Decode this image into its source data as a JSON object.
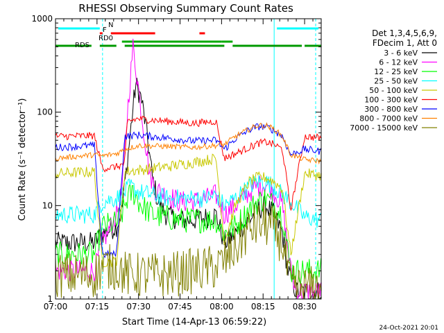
{
  "chart_data": {
    "type": "line",
    "title": "RHESSI Observing Summary Count Rates",
    "xlabel": "Start Time (14-Apr-13 06:59:22)",
    "ylabel": "Count Rate (s⁻¹ detector⁻¹)",
    "y_scale": "log",
    "ylim": [
      1,
      1000
    ],
    "xlim": [
      "07:00",
      "08:36"
    ],
    "x_ticks": [
      "07:00",
      "07:15",
      "07:30",
      "07:45",
      "08:00",
      "08:15",
      "08:30"
    ],
    "y_ticks": [
      "1",
      "10",
      "100",
      "1000"
    ],
    "legend_header": [
      "Det 1,3,4,5,6,9,",
      "FDecim 1, Att 0"
    ],
    "legend_position": "right",
    "timestamp": "24-Oct-2021 20:01",
    "series": [
      {
        "name": "3 - 6 keV",
        "color": "#000000",
        "points": [
          [
            "07:00",
            4
          ],
          [
            "07:14",
            4
          ],
          [
            "07:17",
            5
          ],
          [
            "07:22",
            6
          ],
          [
            "07:24",
            9
          ],
          [
            "07:26",
            30
          ],
          [
            "07:28",
            110
          ],
          [
            "07:29",
            200
          ],
          [
            "07:31",
            140
          ],
          [
            "07:33",
            60
          ],
          [
            "07:35",
            20
          ],
          [
            "07:37",
            11
          ],
          [
            "07:40",
            8
          ],
          [
            "07:45",
            7
          ],
          [
            "07:50",
            7
          ],
          [
            "07:55",
            7.5
          ],
          [
            "07:58",
            8
          ],
          [
            "08:01",
            4
          ],
          [
            "08:05",
            5
          ],
          [
            "08:10",
            7
          ],
          [
            "08:13",
            9
          ],
          [
            "08:16",
            10
          ],
          [
            "08:19",
            8
          ],
          [
            "08:22",
            5
          ],
          [
            "08:24",
            2
          ],
          [
            "08:27",
            1.2
          ],
          [
            "08:36",
            1.2
          ]
        ]
      },
      {
        "name": "6 - 12 keV",
        "color": "#ff00ff",
        "points": [
          [
            "07:00",
            2
          ],
          [
            "07:14",
            2
          ],
          [
            "07:17",
            4
          ],
          [
            "07:22",
            8
          ],
          [
            "07:24",
            14
          ],
          [
            "07:26",
            100
          ],
          [
            "07:28",
            500
          ],
          [
            "07:30",
            180
          ],
          [
            "07:32",
            60
          ],
          [
            "07:34",
            22
          ],
          [
            "07:36",
            15
          ],
          [
            "07:40",
            13
          ],
          [
            "07:45",
            11
          ],
          [
            "07:50",
            11
          ],
          [
            "07:55",
            12
          ],
          [
            "07:58",
            13
          ],
          [
            "08:01",
            8
          ],
          [
            "08:05",
            10
          ],
          [
            "08:10",
            14
          ],
          [
            "08:13",
            16
          ],
          [
            "08:16",
            17
          ],
          [
            "08:19",
            14
          ],
          [
            "08:22",
            10
          ],
          [
            "08:25",
            2
          ],
          [
            "08:27",
            1.2
          ],
          [
            "08:36",
            1.2
          ]
        ]
      },
      {
        "name": "12 - 25 keV",
        "color": "#00ff00",
        "points": [
          [
            "07:00",
            3
          ],
          [
            "07:14",
            3
          ],
          [
            "07:17",
            6
          ],
          [
            "07:22",
            6.5
          ],
          [
            "07:24",
            8
          ],
          [
            "07:26",
            12
          ],
          [
            "07:28",
            14
          ],
          [
            "07:31",
            10
          ],
          [
            "07:35",
            8
          ],
          [
            "07:40",
            7.5
          ],
          [
            "07:45",
            7
          ],
          [
            "07:50",
            7
          ],
          [
            "07:55",
            7
          ],
          [
            "07:58",
            7
          ],
          [
            "08:01",
            5
          ],
          [
            "08:05",
            6
          ],
          [
            "08:10",
            9
          ],
          [
            "08:13",
            11
          ],
          [
            "08:16",
            12
          ],
          [
            "08:19",
            10
          ],
          [
            "08:22",
            8
          ],
          [
            "08:25",
            2
          ],
          [
            "08:36",
            2
          ]
        ]
      },
      {
        "name": "25 - 50 keV",
        "color": "#00ffff",
        "points": [
          [
            "07:00",
            8
          ],
          [
            "07:14",
            8
          ],
          [
            "07:17",
            11
          ],
          [
            "07:22",
            12
          ],
          [
            "07:24",
            13
          ],
          [
            "07:27",
            16
          ],
          [
            "07:30",
            14
          ],
          [
            "07:35",
            13
          ],
          [
            "07:40",
            12
          ],
          [
            "07:45",
            12
          ],
          [
            "07:50",
            12
          ],
          [
            "07:55",
            12
          ],
          [
            "07:58",
            13
          ],
          [
            "08:01",
            10
          ],
          [
            "08:05",
            12
          ],
          [
            "08:10",
            16
          ],
          [
            "08:13",
            18
          ],
          [
            "08:16",
            18
          ],
          [
            "08:19",
            16
          ],
          [
            "08:22",
            13
          ],
          [
            "08:25",
            11
          ],
          [
            "08:30",
            7.5
          ],
          [
            "08:36",
            7
          ]
        ]
      },
      {
        "name": "50 - 100 keV",
        "color": "#c8c800",
        "points": [
          [
            "07:00",
            22
          ],
          [
            "07:14",
            23
          ],
          [
            "07:17",
            2.5
          ],
          [
            "07:22",
            2.5
          ],
          [
            "07:25",
            23
          ],
          [
            "07:30",
            24
          ],
          [
            "07:40",
            26
          ],
          [
            "07:50",
            29
          ],
          [
            "07:58",
            32
          ],
          [
            "08:01",
            4
          ],
          [
            "08:05",
            10
          ],
          [
            "08:10",
            18
          ],
          [
            "08:13",
            20
          ],
          [
            "08:16",
            20
          ],
          [
            "08:19",
            18
          ],
          [
            "08:22",
            15
          ],
          [
            "08:25",
            3
          ],
          [
            "08:30",
            22
          ],
          [
            "08:36",
            21
          ]
        ]
      },
      {
        "name": "100 - 300 keV",
        "color": "#ff0000",
        "points": [
          [
            "07:00",
            55
          ],
          [
            "07:14",
            56
          ],
          [
            "07:17",
            25
          ],
          [
            "07:22",
            26
          ],
          [
            "07:25",
            28
          ],
          [
            "07:26",
            80
          ],
          [
            "07:30",
            85
          ],
          [
            "07:40",
            80
          ],
          [
            "07:50",
            76
          ],
          [
            "07:58",
            80
          ],
          [
            "08:01",
            32
          ],
          [
            "08:05",
            36
          ],
          [
            "08:10",
            42
          ],
          [
            "08:13",
            46
          ],
          [
            "08:16",
            48
          ],
          [
            "08:19",
            45
          ],
          [
            "08:22",
            40
          ],
          [
            "08:25",
            9
          ],
          [
            "08:30",
            55
          ],
          [
            "08:36",
            53
          ]
        ]
      },
      {
        "name": "300 - 800 keV",
        "color": "#0000ff",
        "points": [
          [
            "07:00",
            42
          ],
          [
            "07:14",
            44
          ],
          [
            "07:17",
            3
          ],
          [
            "07:22",
            3
          ],
          [
            "07:25",
            55
          ],
          [
            "07:30",
            57
          ],
          [
            "07:40",
            53
          ],
          [
            "07:50",
            49
          ],
          [
            "07:58",
            50
          ],
          [
            "08:01",
            40
          ],
          [
            "08:05",
            52
          ],
          [
            "08:10",
            65
          ],
          [
            "08:13",
            70
          ],
          [
            "08:16",
            70
          ],
          [
            "08:19",
            64
          ],
          [
            "08:22",
            55
          ],
          [
            "08:25",
            35
          ],
          [
            "08:30",
            40
          ],
          [
            "08:36",
            38
          ]
        ]
      },
      {
        "name": "800 - 7000 keV",
        "color": "#ff8000",
        "points": [
          [
            "07:00",
            32
          ],
          [
            "07:14",
            35
          ],
          [
            "07:17",
            34
          ],
          [
            "07:22",
            36
          ],
          [
            "07:25",
            40
          ],
          [
            "07:30",
            44
          ],
          [
            "07:40",
            43
          ],
          [
            "07:50",
            42
          ],
          [
            "07:58",
            44
          ],
          [
            "08:01",
            45
          ],
          [
            "08:05",
            55
          ],
          [
            "08:10",
            66
          ],
          [
            "08:13",
            72
          ],
          [
            "08:16",
            72
          ],
          [
            "08:19",
            66
          ],
          [
            "08:22",
            55
          ],
          [
            "08:25",
            35
          ],
          [
            "08:30",
            31
          ],
          [
            "08:36",
            30
          ]
        ]
      },
      {
        "name": "7000 - 15000 keV",
        "color": "#808000",
        "points": [
          [
            "07:00",
            1.8
          ],
          [
            "07:14",
            1.8
          ],
          [
            "07:17",
            2.2
          ],
          [
            "07:22",
            2.2
          ],
          [
            "07:26",
            1.8
          ],
          [
            "07:30",
            1.8
          ],
          [
            "07:40",
            1.8
          ],
          [
            "07:50",
            2
          ],
          [
            "07:58",
            2.2
          ],
          [
            "08:01",
            2.5
          ],
          [
            "08:05",
            3.5
          ],
          [
            "08:10",
            5.5
          ],
          [
            "08:13",
            6.3
          ],
          [
            "08:16",
            6.3
          ],
          [
            "08:19",
            5.5
          ],
          [
            "08:22",
            4
          ],
          [
            "08:25",
            1.3
          ],
          [
            "08:36",
            1.3
          ]
        ]
      }
    ],
    "flag_bars": [
      {
        "label": "N",
        "color": "#00ffff",
        "segments": [
          [
            "07:01",
            "07:16"
          ],
          [
            "08:20",
            "08:35"
          ]
        ]
      },
      {
        "label": "F",
        "color": "#ff0000",
        "segments": [
          [
            "07:16",
            "07:17"
          ],
          [
            "07:20",
            "07:36"
          ],
          [
            "07:52",
            "07:54"
          ]
        ]
      },
      {
        "label": "RD0",
        "color": "#00aa00",
        "segments": [
          [
            "07:24",
            "08:00"
          ],
          [
            "08:00",
            "08:04"
          ]
        ]
      },
      {
        "label": "RDS",
        "color": "#009900",
        "segments": [
          [
            "07:00",
            "07:13"
          ],
          [
            "07:16",
            "07:22"
          ],
          [
            "07:25",
            "08:01"
          ],
          [
            "08:04",
            "08:29"
          ],
          [
            "08:30",
            "08:36"
          ]
        ]
      }
    ],
    "vlines": [
      {
        "x": "07:00",
        "color": "#00ffff",
        "style": "solid"
      },
      {
        "x": "07:17",
        "color": "#00ffff",
        "style": "dashed"
      },
      {
        "x": "08:19",
        "color": "#00ffff",
        "style": "solid"
      },
      {
        "x": "08:34",
        "color": "#00ffff",
        "style": "dashed"
      }
    ],
    "grid": false
  }
}
